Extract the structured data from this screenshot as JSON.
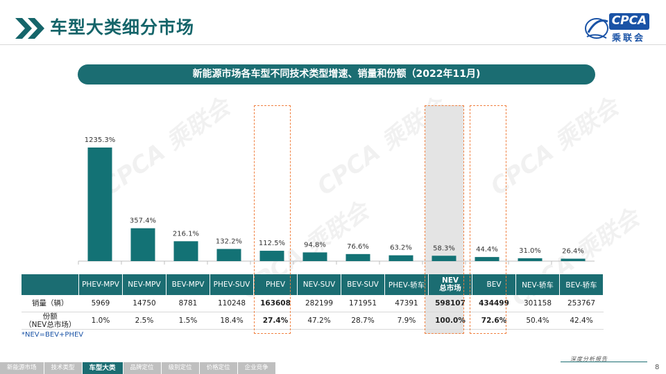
{
  "header": {
    "title": "车型大类细分市场"
  },
  "logo": {
    "brand": "CPCA",
    "cn": "乘联会"
  },
  "banner": {
    "text": "新能源市场各车型不同技术类型增速、销量和份额（2022年11月)"
  },
  "chart_data": {
    "type": "bar",
    "title": "新能源市场各车型不同技术类型增速、销量和份额（2022年11月)",
    "categories": [
      "PHEV-MPV",
      "NEV-MPV",
      "BEV-MPV",
      "PHEV-SUV",
      "PHEV",
      "NEV-SUV",
      "BEV-SUV",
      "PHEV-轿车",
      "NEV总市场",
      "BEV",
      "NEV-轿车",
      "BEV-轿车"
    ],
    "values": [
      1235.3,
      357.4,
      216.1,
      132.2,
      112.5,
      94.8,
      76.6,
      63.2,
      58.3,
      44.4,
      31.0,
      26.4
    ],
    "value_labels": [
      "1235.3%",
      "357.4%",
      "216.1%",
      "132.2%",
      "112.5%",
      "94.8%",
      "76.6%",
      "63.2%",
      "58.3%",
      "44.4%",
      "31.0%",
      "26.4%"
    ],
    "series_name": "增速",
    "ylim": [
      0,
      1235.3
    ],
    "colors": {
      "bar": "#137275",
      "axis": "#bfbfbf"
    }
  },
  "table": {
    "headers": [
      "PHEV-MPV",
      "NEV-MPV",
      "BEV-MPV",
      "PHEV-SUV",
      "PHEV",
      "NEV-SUV",
      "BEV-SUV",
      "PHEV-轿车",
      "NEV\n总市场",
      "BEV",
      "NEV-轿车",
      "BEV-轿车"
    ],
    "rows": [
      {
        "label": "销量（辆）",
        "values": [
          "5969",
          "14750",
          "8781",
          "110248",
          "163608",
          "282199",
          "171951",
          "47391",
          "598107",
          "434499",
          "301158",
          "253767"
        ]
      },
      {
        "label": "份额\n（NEV总市场）",
        "values": [
          "1.0%",
          "2.5%",
          "1.5%",
          "18.4%",
          "27.4%",
          "47.2%",
          "28.7%",
          "7.9%",
          "100.0%",
          "72.6%",
          "50.4%",
          "42.4%"
        ]
      }
    ],
    "bold_columns": [
      4,
      8,
      9
    ]
  },
  "note": "*NEV=BEV+PHEV",
  "footer": {
    "tabs": [
      "新能源市场",
      "技术类型",
      "车型大类",
      "品牌定位",
      "级别定位",
      "价格定位",
      "企业竞争"
    ],
    "active_index": 2,
    "report": "深度分析报告",
    "page": "8"
  },
  "watermark": "CPCA 乘联会"
}
